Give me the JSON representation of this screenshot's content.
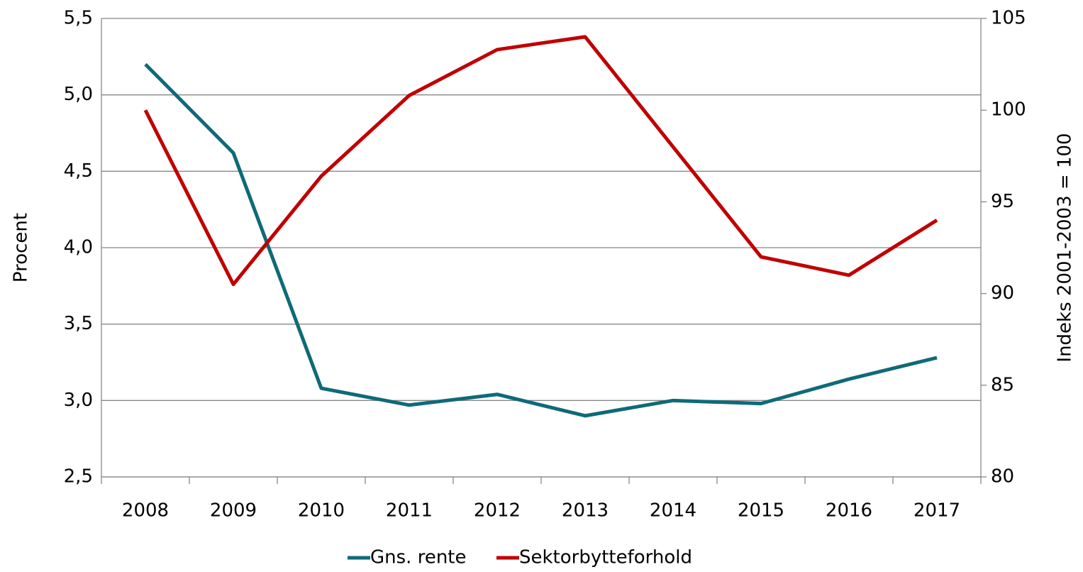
{
  "chart_data": {
    "type": "line",
    "categories": [
      "2008",
      "2009",
      "2010",
      "2011",
      "2012",
      "2013",
      "2014",
      "2015",
      "2016",
      "2017"
    ],
    "series": [
      {
        "name": "Gns. rente",
        "color": "#0f6a78",
        "values": [
          5.2,
          4.62,
          3.08,
          2.97,
          3.04,
          2.9,
          3.0,
          2.98,
          3.14,
          3.28
        ]
      },
      {
        "name": "Sektorbytteforhold",
        "color": "#c00000",
        "axis": "y2",
        "values": [
          100.0,
          90.5,
          96.4,
          100.8,
          103.3,
          104.0,
          98.0,
          92.0,
          91.0,
          94.0
        ]
      }
    ],
    "ylabel": "Procent",
    "y2label": "Indeks 2001-2003 = 100",
    "ylim": [
      2.5,
      5.5
    ],
    "yticks": [
      {
        "value": 2.5,
        "label": "2,5"
      },
      {
        "value": 3.0,
        "label": "3,0"
      },
      {
        "value": 3.5,
        "label": "3,5"
      },
      {
        "value": 4.0,
        "label": "4,0"
      },
      {
        "value": 4.5,
        "label": "4,5"
      },
      {
        "value": 5.0,
        "label": "5,0"
      },
      {
        "value": 5.5,
        "label": "5,5"
      }
    ],
    "y2lim": [
      80,
      105
    ],
    "y2ticks": [
      80,
      85,
      90,
      95,
      100,
      105
    ],
    "grid": true,
    "legend": "bottom"
  }
}
